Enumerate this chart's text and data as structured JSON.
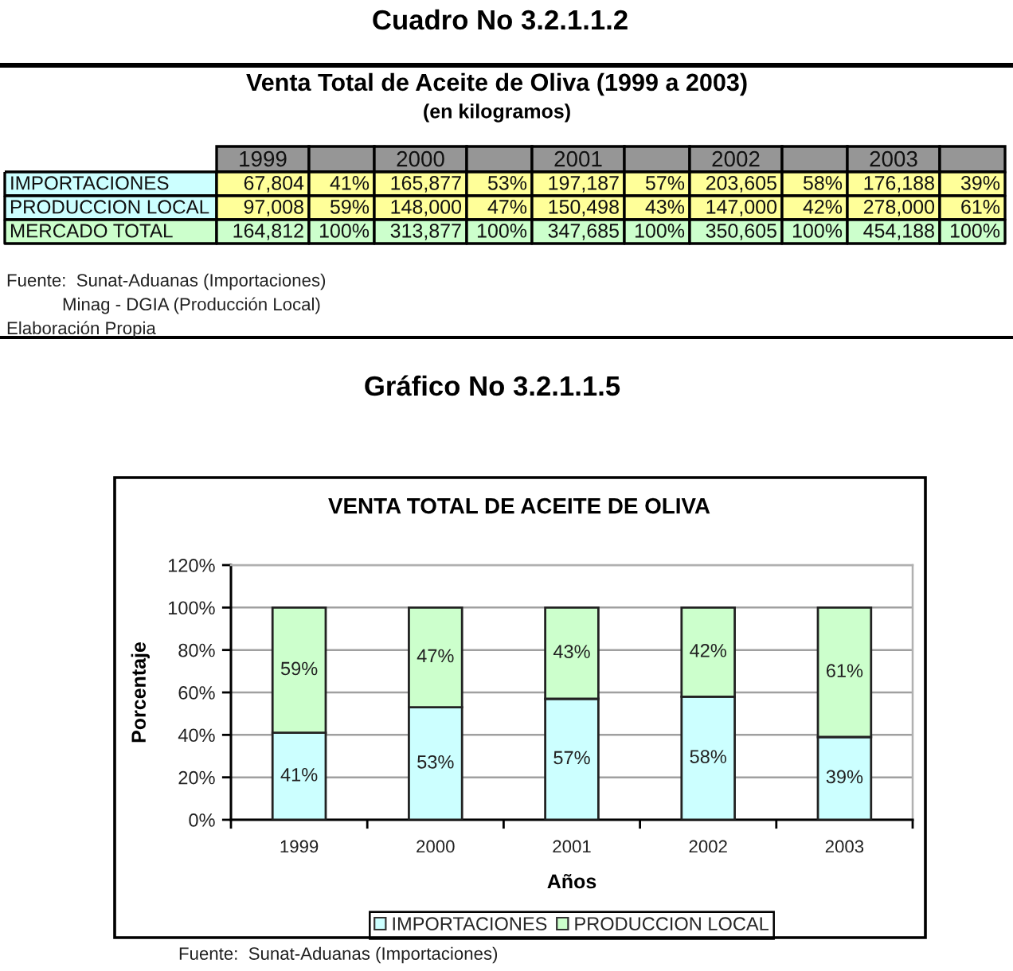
{
  "chart_data": [
    {
      "type": "heatmap",
      "title": "Venta Total de Aceite de Oliva (1999 a 2003)",
      "subtitle": "(en kilogramos)",
      "categories": [
        "1999",
        null,
        "2000",
        null,
        "2001",
        null,
        "2002",
        null,
        "2003",
        null
      ],
      "y_categories": [
        "IMPORTACIONES",
        "PRODUCCION LOCAL",
        "MERCADO TOTAL"
      ],
      "cells": [
        [
          null,
          null,
          null,
          null,
          null,
          null,
          null,
          null,
          null,
          null
        ],
        [
          null,
          null,
          null,
          null,
          null,
          null,
          null,
          null,
          null,
          null
        ],
        [
          null,
          null,
          null,
          null,
          null,
          null,
          null,
          null,
          null,
          null
        ]
      ],
      "cell_labels": [
        [
          "67,804",
          "41%",
          "165,877",
          "53%",
          "197,187",
          "57%",
          "203,605",
          "58%",
          "176,188",
          "39%"
        ],
        [
          "97,008",
          "59%",
          "148,000",
          "47%",
          "150,498",
          "43%",
          "147,000",
          "42%",
          "278,000",
          "61%"
        ],
        [
          "164,812",
          "100%",
          "313,877",
          "100%",
          "347,685",
          "100%",
          "350,605",
          "100%",
          "454,188",
          "100%"
        ]
      ],
      "colors": [
        [
          null,
          "#969696",
          "#969696",
          "#969696",
          "#969696",
          "#969696",
          "#969696",
          "#969696",
          "#969696",
          "#969696",
          "#969696"
        ],
        [
          "#ccffff",
          "#ffff99",
          "#ffff99",
          "#ffff99",
          "#ffff99",
          "#ffff99",
          "#ffff99",
          "#ffff99",
          "#ffff99",
          "#ffff99",
          "#ffff99"
        ],
        [
          "#ccffff",
          "#ffff99",
          "#ffff99",
          "#ffff99",
          "#ffff99",
          "#ffff99",
          "#ffff99",
          "#ffff99",
          "#ffff99",
          "#ffff99",
          "#ffff99"
        ],
        [
          "#ccffcc",
          "#ccffcc",
          "#ccffcc",
          "#ccffcc",
          "#ccffcc",
          "#ccffcc",
          "#ccffcc",
          "#ccffcc",
          "#ccffcc",
          "#ccffcc",
          "#ccffcc"
        ]
      ],
      "annotations": [
        "Cuadro No 3.2.1.1.2",
        "Fuente:  Sunat-Aduanas (Importaciones)",
        "Minag - DGIA (Producción Local)",
        "Elaboración Propia"
      ]
    },
    {
      "type": "bar",
      "stacked": true,
      "title": "VENTA TOTAL DE ACEITE DE OLIVA",
      "xlabel": "Años",
      "ylabel": "Porcentaje",
      "categories": [
        "1999",
        "2000",
        "2001",
        "2002",
        "2003"
      ],
      "series": [
        {
          "name": "IMPORTACIONES",
          "color": "#ccffff",
          "values": [
            41,
            53,
            57,
            58,
            39
          ],
          "value_labels": [
            "41%",
            "53%",
            "57%",
            "58%",
            "39%"
          ]
        },
        {
          "name": "PRODUCCION LOCAL",
          "color": "#ccffcc",
          "values": [
            59,
            47,
            43,
            42,
            61
          ],
          "value_labels": [
            "59%",
            "47%",
            "43%",
            "42%",
            "61%"
          ]
        }
      ],
      "ylim": [
        0,
        120
      ],
      "yticks": [
        {
          "value": 0,
          "label": "0%"
        },
        {
          "value": 20,
          "label": "20%"
        },
        {
          "value": 40,
          "label": "40%"
        },
        {
          "value": 60,
          "label": "60%"
        },
        {
          "value": 80,
          "label": "80%"
        },
        {
          "value": 100,
          "label": "100%"
        },
        {
          "value": 120,
          "label": "120%"
        }
      ],
      "grid": "y",
      "legend": "bottom",
      "annotations": [
        "Gráfico No 3.2.1.1.5",
        "Fuente:  Sunat-Aduanas (Importaciones)"
      ]
    }
  ]
}
